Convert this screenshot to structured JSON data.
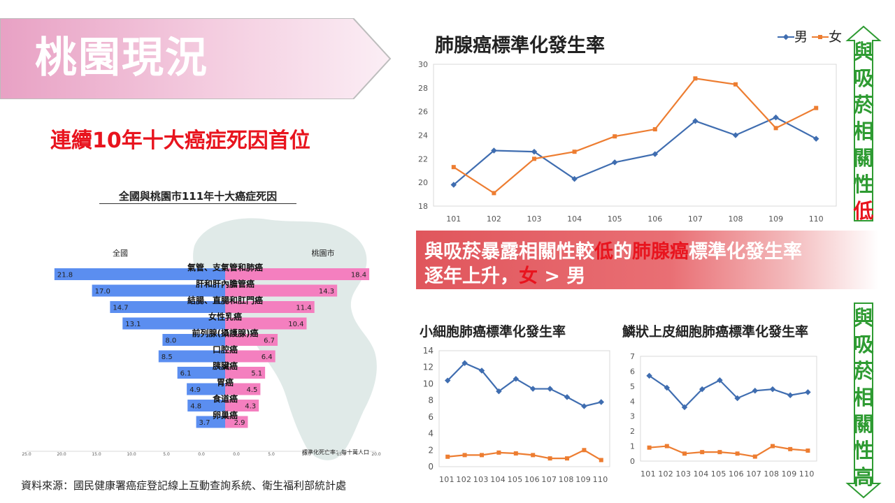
{
  "header": {
    "banner_title": "桃園現況",
    "subtitle": "連續10年十大癌症死因首位"
  },
  "source": "資料來源：國民健康署癌症登記線上互動查詢系統、衛生福利部統計處",
  "note": {
    "line1_pre": "與吸菸暴露相關性較",
    "line1_low": "低",
    "line1_mid": "的",
    "line1_cancer": "肺腺癌",
    "line1_post": "標準化發生率",
    "line2_pre": "逐年上升，",
    "line2_female": "女",
    "line2_post": " > 男"
  },
  "side_labels": {
    "top": [
      "與",
      "吸",
      "菸",
      "相",
      "關",
      "性",
      "低"
    ],
    "bottom": [
      "與",
      "吸",
      "菸",
      "相",
      "關",
      "性",
      "高"
    ]
  },
  "legend": {
    "male": "男",
    "female": "女"
  },
  "colors": {
    "male": "#3f6db0",
    "female": "#ed7d31",
    "banner": "#e8a9c7",
    "bar_left": "#5b8ef0",
    "bar_right": "#f47fbf",
    "arrow_green": "#2e9b32",
    "red": "#e8141e"
  },
  "chart_data": [
    {
      "type": "bar",
      "title": "全國與桃園市111年十大癌症死因",
      "left_label": "全國",
      "right_label": "桃園市",
      "unit_note": "標準化死亡率：每十萬人口",
      "categories": [
        "氣管、支氣管和肺癌",
        "肝和肝內膽管癌",
        "結腸、直腸和肛門癌",
        "女性乳癌",
        "前列腺(攝護腺)癌",
        "口腔癌",
        "胰臟癌",
        "胃癌",
        "食道癌",
        "卵巢癌"
      ],
      "series": [
        {
          "name": "全國",
          "values": [
            21.8,
            17.0,
            14.7,
            13.1,
            8.0,
            8.5,
            6.1,
            4.9,
            4.8,
            3.7
          ]
        },
        {
          "name": "桃園市",
          "values": [
            18.4,
            14.3,
            11.4,
            10.4,
            6.7,
            6.4,
            5.1,
            4.5,
            4.3,
            2.9
          ]
        }
      ],
      "xlim": [
        -25,
        20
      ],
      "xticks": [
        "25.0",
        "20.0",
        "15.0",
        "10.0",
        "5.0",
        "0.0",
        "0.0",
        "5.0",
        "10.0",
        "15.0",
        "20.0"
      ]
    },
    {
      "type": "line",
      "title": "肺腺癌標準化發生率",
      "x": [
        "101",
        "102",
        "103",
        "104",
        "105",
        "106",
        "107",
        "108",
        "109",
        "110"
      ],
      "series": [
        {
          "name": "男",
          "values": [
            19.8,
            22.7,
            22.6,
            20.3,
            21.7,
            22.4,
            25.2,
            24.0,
            25.5,
            23.7
          ]
        },
        {
          "name": "女",
          "values": [
            21.3,
            19.1,
            22.0,
            22.6,
            23.9,
            24.5,
            28.8,
            28.3,
            24.6,
            26.3
          ]
        }
      ],
      "ylim": [
        18,
        30
      ],
      "yticks": [
        18,
        20,
        22,
        24,
        26,
        28,
        30
      ]
    },
    {
      "type": "line",
      "title": "小細胞肺癌標準化發生率",
      "x": [
        "101",
        "102",
        "103",
        "104",
        "105",
        "106",
        "107",
        "108",
        "109",
        "110"
      ],
      "series": [
        {
          "name": "男",
          "values": [
            10.4,
            12.5,
            11.6,
            9.1,
            10.6,
            9.4,
            9.4,
            8.4,
            7.3,
            7.8
          ]
        },
        {
          "name": "女",
          "values": [
            1.2,
            1.4,
            1.4,
            1.7,
            1.6,
            1.4,
            1.0,
            1.0,
            2.0,
            0.8
          ]
        }
      ],
      "ylim": [
        0,
        14
      ],
      "yticks": [
        0,
        2,
        4,
        6,
        8,
        10,
        12,
        14
      ]
    },
    {
      "type": "line",
      "title": "鱗狀上皮細胞肺癌標準化發生率",
      "x": [
        "101",
        "102",
        "103",
        "104",
        "105",
        "106",
        "107",
        "108",
        "109",
        "110"
      ],
      "series": [
        {
          "name": "男",
          "values": [
            5.7,
            4.9,
            3.6,
            4.8,
            5.4,
            4.2,
            4.7,
            4.8,
            4.4,
            4.6
          ]
        },
        {
          "name": "女",
          "values": [
            0.9,
            1.0,
            0.5,
            0.6,
            0.6,
            0.5,
            0.3,
            1.0,
            0.8,
            0.7
          ]
        }
      ],
      "ylim": [
        0,
        7
      ],
      "yticks": [
        0,
        1,
        2,
        3,
        4,
        5,
        6,
        7
      ]
    }
  ]
}
